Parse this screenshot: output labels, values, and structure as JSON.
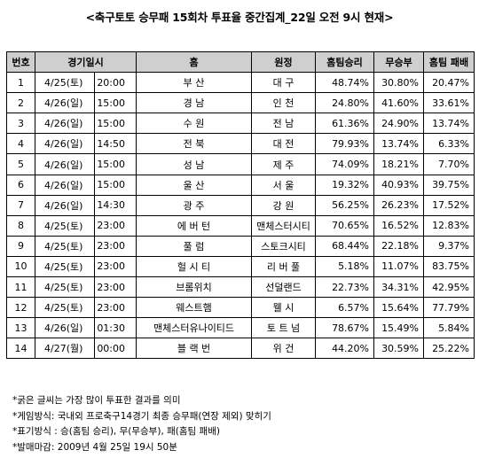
{
  "title": "<축구토토 승무패 15회차 투표율 중간집계_22일 오전 9시 현재>",
  "table": {
    "headers": [
      "번호",
      "경기일시",
      "",
      "홈",
      "원정",
      "홈팀승리",
      "무승부",
      "홈팀 패배"
    ],
    "rows": [
      [
        "1",
        "4/25(토)",
        "20:00",
        "부 산",
        "대 구",
        "48.74%",
        "30.80%",
        "20.47%"
      ],
      [
        "2",
        "4/26(일)",
        "15:00",
        "경 남",
        "인 천",
        "24.80%",
        "41.60%",
        "33.61%"
      ],
      [
        "3",
        "4/26(일)",
        "15:00",
        "수 원",
        "전 남",
        "61.36%",
        "24.90%",
        "13.74%"
      ],
      [
        "4",
        "4/26(일)",
        "14:50",
        "전 북",
        "대 전",
        "79.93%",
        "13.74%",
        "6.33%"
      ],
      [
        "5",
        "4/26(일)",
        "15:00",
        "성 남",
        "제 주",
        "74.09%",
        "18.21%",
        "7.70%"
      ],
      [
        "6",
        "4/26(일)",
        "15:00",
        "울 산",
        "서 울",
        "19.32%",
        "40.93%",
        "39.75%"
      ],
      [
        "7",
        "4/26(일)",
        "14:30",
        "광 주",
        "강 원",
        "56.25%",
        "26.23%",
        "17.52%"
      ],
      [
        "8",
        "4/25(토)",
        "23:00",
        "에 버 턴",
        "맨체스터시티",
        "70.65%",
        "16.52%",
        "12.83%"
      ],
      [
        "9",
        "4/25(토)",
        "23:00",
        "풀 럼",
        "스토크시티",
        "68.44%",
        "22.18%",
        "9.37%"
      ],
      [
        "10",
        "4/25(토)",
        "23:00",
        "헐 시 티",
        "리 버 풀",
        "5.18%",
        "11.07%",
        "83.75%"
      ],
      [
        "11",
        "4/25(토)",
        "23:00",
        "브롬위치",
        "선덜랜드",
        "22.73%",
        "34.31%",
        "42.95%"
      ],
      [
        "12",
        "4/25(토)",
        "23:00",
        "웨스트햄",
        "웰 시",
        "6.57%",
        "15.64%",
        "77.79%"
      ],
      [
        "13",
        "4/26(일)",
        "01:30",
        "맨체스터유나이티드",
        "토 트 넘",
        "78.67%",
        "15.49%",
        "5.84%"
      ],
      [
        "14",
        "4/27(월)",
        "00:00",
        "블 랙 번",
        "위 건",
        "44.20%",
        "30.59%",
        "25.22%"
      ]
    ]
  },
  "notes": [
    "*굵은 글씨는 가장 많이 투표한 결과를 의미",
    "*게임방식: 국내외 프로축구14경기 최종 승무패(연장 제외) 맞히기",
    "*표기방식 : 승(홈팀 승리), 무(무승부), 패(홈팀 패배)",
    "*발매마감: 2009년 4월 25일 19시 50분"
  ]
}
